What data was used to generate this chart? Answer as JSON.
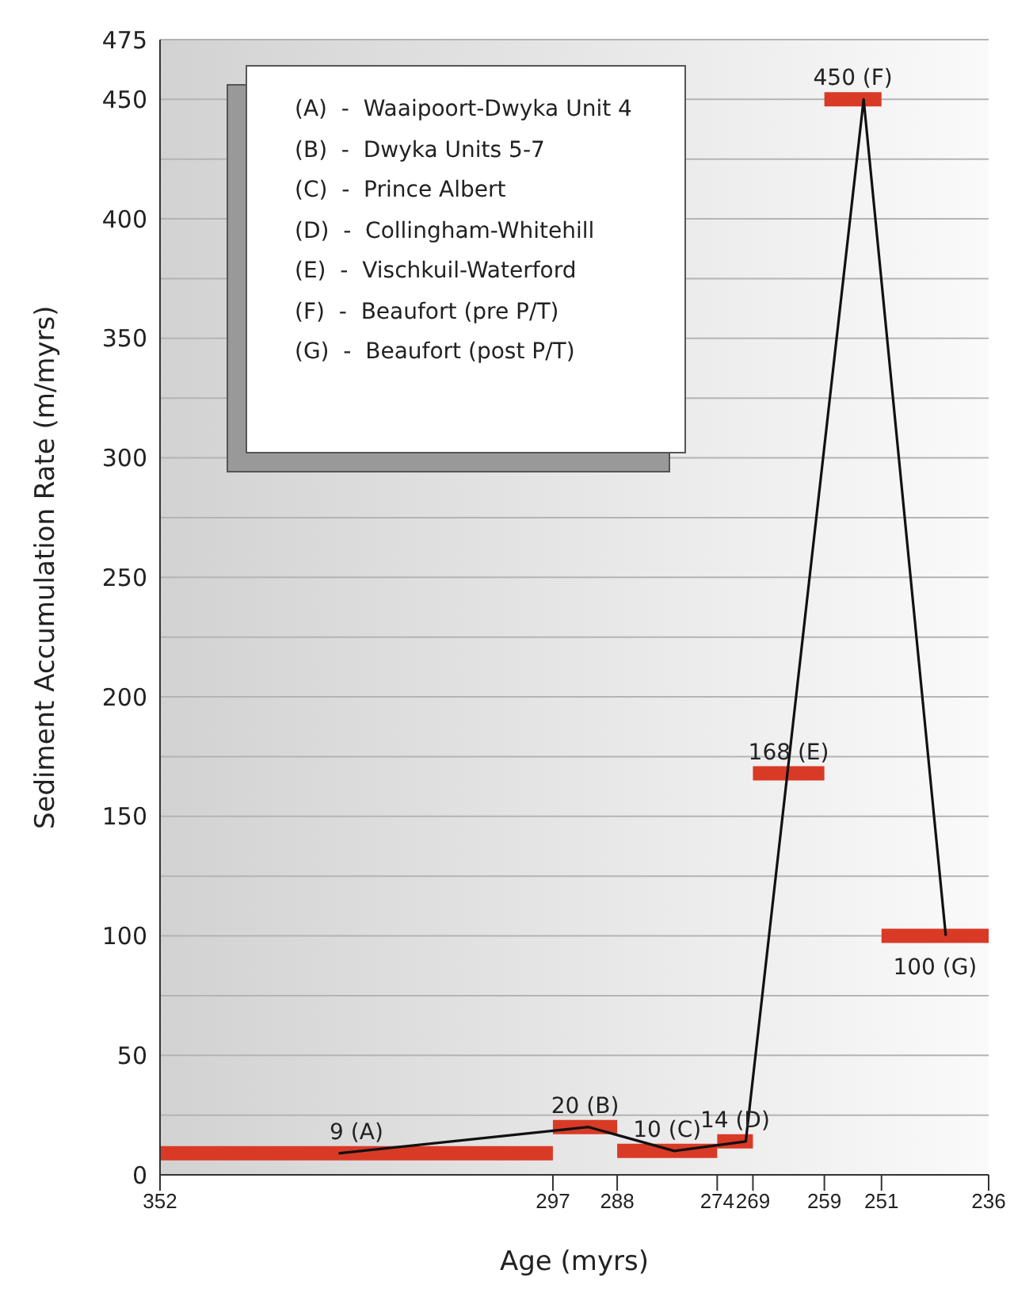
{
  "chart_data": {
    "type": "line",
    "xlabel": "Age (myrs)",
    "ylabel": "Sediment Accumulation Rate (m/myrs)",
    "xlim": [
      352,
      236
    ],
    "xticks": [
      352,
      297,
      288,
      274,
      269,
      259,
      251,
      236
    ],
    "ylim": [
      0,
      475
    ],
    "yticks": [
      0,
      {
        "value": 25,
        "label": null
      },
      50,
      {
        "value": 75,
        "label": null
      },
      100,
      {
        "value": 125,
        "label": null
      },
      150,
      {
        "value": 175,
        "label": null
      },
      200,
      {
        "value": 225,
        "label": null
      },
      250,
      {
        "value": 275,
        "label": null
      },
      300,
      {
        "value": 325,
        "label": null
      },
      350,
      {
        "value": 375,
        "label": null
      },
      400,
      {
        "value": 425,
        "label": null
      },
      450,
      475
    ],
    "grid": "y",
    "marker": "none",
    "line_style": "solid",
    "series": [
      {
        "color": "#d93a26",
        "x": [
          352,
          297
        ],
        "values": [
          9,
          9
        ]
      },
      {
        "color": "#d93a26",
        "x": [
          297,
          288
        ],
        "values": [
          20,
          20
        ]
      },
      {
        "color": "#d93a26",
        "x": [
          288,
          274
        ],
        "values": [
          10,
          10
        ]
      },
      {
        "color": "#d93a26",
        "x": [
          274,
          269
        ],
        "values": [
          14,
          14
        ]
      },
      {
        "color": "#d93a26",
        "x": [
          269,
          259
        ],
        "values": [
          168,
          168
        ]
      },
      {
        "color": "#d93a26",
        "x": [
          259,
          251
        ],
        "values": [
          450,
          450
        ]
      },
      {
        "color": "#d93a26",
        "x": [
          251,
          236
        ],
        "values": [
          100,
          100
        ]
      },
      {
        "color": "#111111",
        "x": [
          327,
          292,
          280,
          270,
          253.5,
          242
        ],
        "values": [
          9,
          20,
          10,
          14,
          450,
          100
        ]
      }
    ],
    "annotations": [
      {
        "text": "9  (A)",
        "x": 324.5,
        "y": 9
      },
      {
        "text": "20  (B)",
        "x": 292.5,
        "y": 20
      },
      {
        "text": "10  (C)",
        "x": 281,
        "y": 10
      },
      {
        "text": "14  (D)",
        "x": 271.5,
        "y": 14
      },
      {
        "text": "168  (E)",
        "x": 264,
        "y": 168
      },
      {
        "text": "450  (F)",
        "x": 255,
        "y": 450
      },
      {
        "text": "100  (G)",
        "x": 243.5,
        "y": 100
      },
      "(A)  -  Waaipoort-Dwyka Unit 4",
      "(B)  -  Dwyka Units 5-7",
      "(C)  -  Prince Albert",
      "(D)  -  Collingham-Whitehill",
      "(E)  -  Vischkuil-Waterford",
      "(F)  -  Beaufort (pre P/T)",
      "(G)  -  Beaufort (post P/T)"
    ]
  }
}
